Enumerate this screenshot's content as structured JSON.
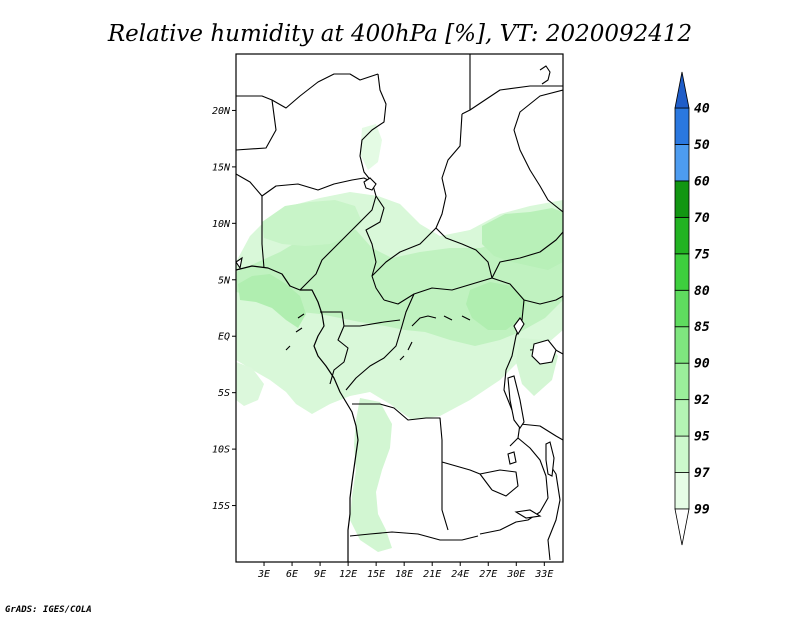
{
  "title": "Relative humidity at 400hPa [%], VT: 2020092412",
  "credit": "GrADS: IGES/COLA",
  "map": {
    "lon_range": [
      0,
      35
    ],
    "lat_range": [
      -20,
      25
    ],
    "lat_ticks": [
      "20N",
      "15N",
      "10N",
      "5N",
      "EQ",
      "5S",
      "10S",
      "15S"
    ],
    "lon_ticks": [
      "3E",
      "6E",
      "9E",
      "12E",
      "15E",
      "18E",
      "21E",
      "24E",
      "27E",
      "30E",
      "33E"
    ]
  },
  "colorbar": {
    "labels": [
      "40",
      "50",
      "60",
      "70",
      "75",
      "80",
      "85",
      "90",
      "92",
      "95",
      "97",
      "99"
    ],
    "colors": [
      "#ffffff",
      "#e6fce6",
      "#cdf8cd",
      "#b4f4b4",
      "#9bee9b",
      "#7fe67f",
      "#5fdc5f",
      "#3ecf3e",
      "#22b322",
      "#129612",
      "#4d9cf0",
      "#2a78e0",
      "#1f5dc8"
    ]
  }
}
